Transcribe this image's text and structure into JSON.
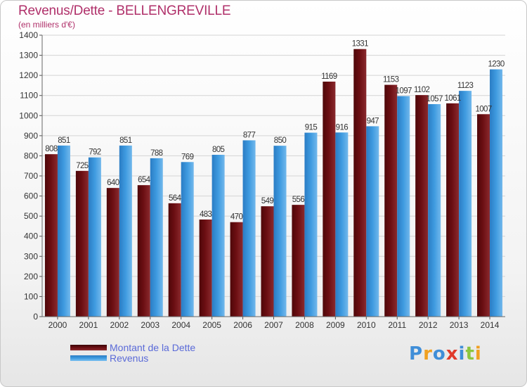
{
  "title": "Revenus/Dette - BELLENGREVILLE",
  "subtitle": "(en milliers d'€)",
  "colors": {
    "dette": "#6b0e12",
    "revenus": "#3f9be0",
    "title": "#b0306a",
    "legend_text": "#5a6ad8"
  },
  "logo": {
    "text": "Proxiti",
    "letters": [
      {
        "ch": "P",
        "color": "#3f8ed8"
      },
      {
        "ch": "r",
        "color": "#f0a020"
      },
      {
        "ch": "o",
        "color": "#3f8ed8"
      },
      {
        "ch": "x",
        "color": "#e03a2a"
      },
      {
        "ch": "i",
        "color": "#3f8ed8"
      },
      {
        "ch": "t",
        "color": "#8cc63f"
      },
      {
        "ch": "i",
        "color": "#f0a020"
      }
    ]
  },
  "chart_data": {
    "type": "bar",
    "title": "Revenus/Dette - BELLENGREVILLE",
    "subtitle": "(en milliers d'€)",
    "categories": [
      "2000",
      "2001",
      "2002",
      "2003",
      "2004",
      "2005",
      "2006",
      "2007",
      "2008",
      "2009",
      "2010",
      "2011",
      "2012",
      "2013",
      "2014"
    ],
    "series": [
      {
        "name": "Montant de la Dette",
        "values": [
          808,
          725,
          640,
          654,
          564,
          483,
          470,
          549,
          556,
          1169,
          1331,
          1153,
          1102,
          1061,
          1007
        ]
      },
      {
        "name": "Revenus",
        "values": [
          851,
          792,
          851,
          788,
          769,
          805,
          877,
          850,
          915,
          916,
          947,
          1097,
          1057,
          1123,
          1230
        ]
      }
    ],
    "data_labels": {
      "Montant de la Dette": [
        "808",
        "725",
        "640",
        "654",
        "564",
        "483",
        "470",
        "549",
        "556",
        "1169",
        "1331",
        "1153",
        "1102",
        "1061",
        "1007"
      ],
      "Revenus": [
        "851",
        "792",
        "851",
        "788",
        "769",
        "805",
        "877",
        "850",
        "915",
        "916",
        "947",
        "1097",
        "1057",
        "1123",
        "1230"
      ]
    },
    "ylim": [
      0,
      1400
    ],
    "yticks": [
      0,
      100,
      200,
      300,
      400,
      500,
      600,
      700,
      800,
      900,
      1000,
      1100,
      1200,
      1300,
      1400
    ],
    "grid": true,
    "legend_position": "bottom-left"
  }
}
